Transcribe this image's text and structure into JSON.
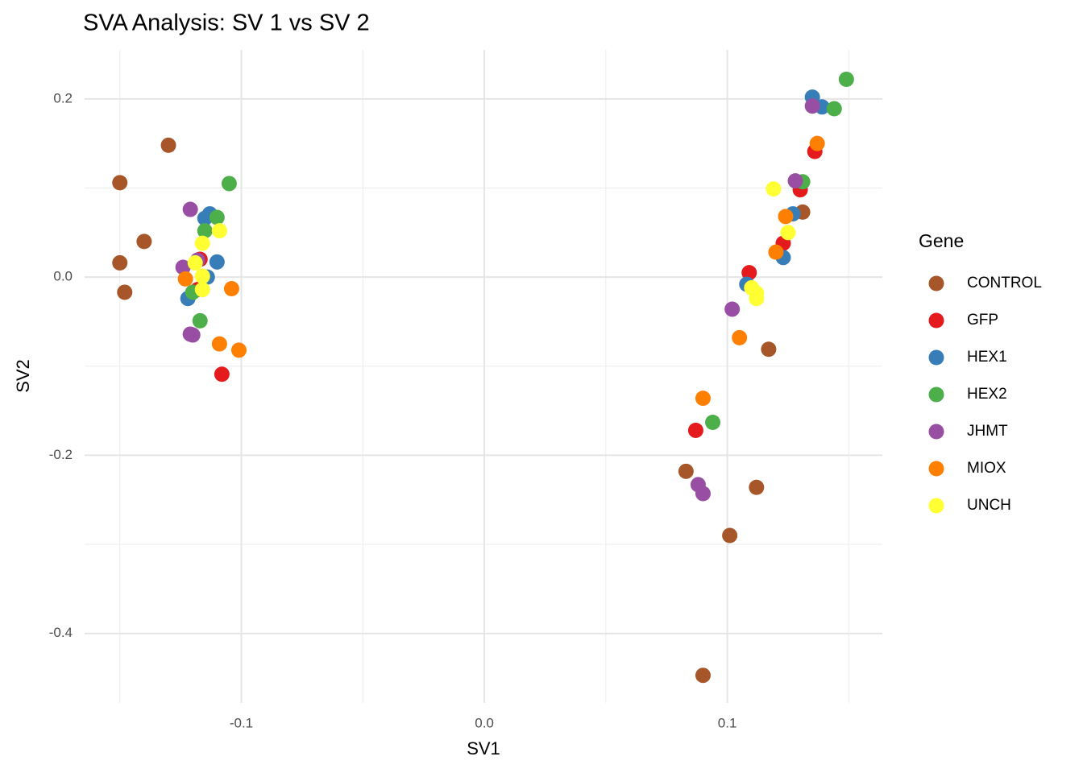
{
  "chart_data": {
    "type": "scatter",
    "title": "SVA Analysis: SV 1  vs SV 2",
    "x_label": "SV1",
    "y_label": "SV2",
    "legend_title": "Gene",
    "legend_position": "right",
    "grid": true,
    "xlim": [
      -0.1645,
      0.1638
    ],
    "ylim": [
      -0.478,
      0.255
    ],
    "xticks": [
      -0.1,
      {
        "value": 0,
        "label": "0.0"
      },
      0.1
    ],
    "yticks": [
      -0.4,
      -0.2,
      {
        "value": 0,
        "label": "0.0"
      },
      0.2
    ],
    "xminorticks": [
      -0.15,
      -0.05,
      0.05,
      0.15
    ],
    "yminorticks": [
      -0.3,
      -0.1,
      0.1
    ],
    "series": [
      {
        "name": "CONTROL",
        "color": "#A65628",
        "x": [
          -0.13,
          -0.15,
          -0.14,
          -0.15,
          -0.148,
          0.131,
          0.117,
          0.083,
          0.112,
          0.101,
          0.09
        ],
        "values": [
          0.148,
          0.106,
          0.04,
          0.016,
          -0.017,
          0.073,
          -0.081,
          -0.218,
          -0.236,
          -0.29,
          -0.447
        ]
      },
      {
        "name": "GFP",
        "color": "#E41A1C",
        "x": [
          -0.117,
          -0.118,
          -0.108,
          0.109,
          0.123,
          0.13,
          0.136,
          0.087
        ],
        "values": [
          0.02,
          -0.014,
          -0.109,
          0.005,
          0.038,
          0.098,
          0.141,
          -0.172
        ]
      },
      {
        "name": "HEX1",
        "color": "#377EB8",
        "x": [
          -0.113,
          -0.115,
          -0.11,
          -0.114,
          -0.122,
          0.135,
          0.139,
          0.108,
          0.123,
          0.127
        ],
        "values": [
          0.071,
          0.066,
          0.017,
          0.0,
          -0.024,
          0.202,
          0.191,
          -0.008,
          0.022,
          0.071
        ]
      },
      {
        "name": "HEX2",
        "color": "#4DAF4A",
        "x": [
          -0.105,
          -0.11,
          -0.115,
          -0.12,
          -0.117,
          0.149,
          0.144,
          0.131,
          0.094
        ],
        "values": [
          0.105,
          0.067,
          0.052,
          -0.017,
          -0.049,
          0.222,
          0.189,
          0.107,
          -0.163
        ]
      },
      {
        "name": "JHMT",
        "color": "#984EA3",
        "x": [
          -0.121,
          -0.124,
          -0.118,
          -0.121,
          -0.12,
          0.135,
          0.128,
          0.102,
          0.088,
          0.09
        ],
        "values": [
          0.076,
          0.011,
          0.019,
          -0.064,
          -0.065,
          0.192,
          0.108,
          -0.036,
          -0.233,
          -0.243
        ]
      },
      {
        "name": "MIOX",
        "color": "#FF7F00",
        "x": [
          -0.123,
          -0.104,
          -0.109,
          -0.101,
          0.137,
          0.124,
          0.12,
          0.105,
          0.09
        ],
        "values": [
          -0.002,
          -0.013,
          -0.075,
          -0.082,
          0.15,
          0.068,
          0.028,
          -0.068,
          -0.136
        ]
      },
      {
        "name": "UNCH",
        "color": "#FFFF33",
        "x": [
          -0.116,
          -0.109,
          -0.119,
          -0.116,
          -0.116,
          0.119,
          0.125,
          0.11,
          0.112,
          0.112
        ],
        "values": [
          0.038,
          0.052,
          0.016,
          0.001,
          -0.014,
          0.099,
          0.05,
          -0.012,
          -0.018,
          -0.024
        ]
      }
    ]
  }
}
